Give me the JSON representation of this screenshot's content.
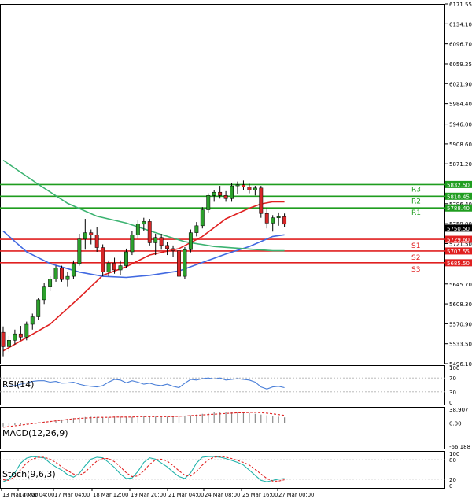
{
  "colors": {
    "background": "#ffffff",
    "frame": "#000000",
    "bull_candle": "#2ca02c",
    "bear_candle": "#d62728",
    "resistance": "#1f9d1f",
    "support": "#e02020",
    "ma_fast": "#e02020",
    "ma_mid": "#4169e1",
    "ma_slow": "#3cb371",
    "rsi": "#4a7fd8",
    "macd_hist": "#8a8a8a",
    "macd_signal": "#e02020",
    "stoch_main": "#20b2aa",
    "stoch_signal": "#e02020",
    "ref_line": "#b0b0b0"
  },
  "chart_data": {
    "type": "candlestick",
    "price_axis_ticks": [
      "6171.55",
      "6134.10",
      "6096.70",
      "6059.25",
      "6021.90",
      "5984.40",
      "5946.00",
      "5908.60",
      "5871.20",
      "5833.70",
      "5796.40",
      "5759.00",
      "5721.50",
      "5684.10",
      "5645.70",
      "5608.30",
      "5570.90",
      "5533.50",
      "5496.10"
    ],
    "ylim": [
      5496.1,
      6171.55
    ],
    "time_labels": [
      "13 Mar 20:00",
      "14 Mar 04:00",
      "17 Mar 04:00",
      "18 Mar 12:00",
      "19 Mar 20:00",
      "21 Mar 04:00",
      "24 Mar 08:00",
      "25 Mar 16:00",
      "27 Mar 00:00"
    ],
    "levels": [
      {
        "name": "R3",
        "value": 5832.5,
        "label": "5832.50",
        "kind": "resistance"
      },
      {
        "name": "R2",
        "value": 5810.45,
        "label": "5810.45",
        "kind": "resistance"
      },
      {
        "name": "R1",
        "value": 5788.4,
        "label": "5788.40",
        "kind": "resistance"
      },
      {
        "name": "S1",
        "value": 5729.6,
        "label": "5729.60",
        "kind": "support"
      },
      {
        "name": "S2",
        "value": 5707.55,
        "label": "5707.55",
        "kind": "support"
      },
      {
        "name": "S3",
        "value": 5685.5,
        "label": "5685.50",
        "kind": "support"
      }
    ],
    "current_price": {
      "value": 5750.5,
      "label": "5750.50"
    },
    "candles": [
      [
        5555,
        5566,
        5510,
        5528
      ],
      [
        5528,
        5548,
        5518,
        5540
      ],
      [
        5540,
        5560,
        5532,
        5552
      ],
      [
        5552,
        5567,
        5540,
        5546
      ],
      [
        5546,
        5575,
        5540,
        5570
      ],
      [
        5570,
        5590,
        5560,
        5584
      ],
      [
        5584,
        5620,
        5578,
        5616
      ],
      [
        5616,
        5648,
        5608,
        5640
      ],
      [
        5640,
        5660,
        5632,
        5655
      ],
      [
        5655,
        5680,
        5650,
        5676
      ],
      [
        5676,
        5680,
        5650,
        5654
      ],
      [
        5654,
        5668,
        5640,
        5660
      ],
      [
        5660,
        5690,
        5655,
        5684
      ],
      [
        5684,
        5740,
        5680,
        5730
      ],
      [
        5730,
        5768,
        5710,
        5742
      ],
      [
        5742,
        5748,
        5720,
        5738
      ],
      [
        5738,
        5752,
        5706,
        5714
      ],
      [
        5714,
        5720,
        5660,
        5668
      ],
      [
        5668,
        5690,
        5660,
        5685
      ],
      [
        5685,
        5695,
        5665,
        5672
      ],
      [
        5672,
        5690,
        5663,
        5680
      ],
      [
        5680,
        5712,
        5675,
        5706
      ],
      [
        5706,
        5745,
        5700,
        5738
      ],
      [
        5738,
        5765,
        5730,
        5758
      ],
      [
        5758,
        5770,
        5745,
        5763
      ],
      [
        5763,
        5768,
        5718,
        5723
      ],
      [
        5723,
        5740,
        5700,
        5733
      ],
      [
        5733,
        5740,
        5710,
        5718
      ],
      [
        5718,
        5725,
        5700,
        5712
      ],
      [
        5712,
        5718,
        5696,
        5708
      ],
      [
        5708,
        5712,
        5650,
        5660
      ],
      [
        5660,
        5715,
        5655,
        5710
      ],
      [
        5710,
        5748,
        5705,
        5742
      ],
      [
        5742,
        5762,
        5735,
        5755
      ],
      [
        5755,
        5790,
        5750,
        5785
      ],
      [
        5785,
        5816,
        5780,
        5812
      ],
      [
        5812,
        5822,
        5800,
        5818
      ],
      [
        5818,
        5830,
        5806,
        5812
      ],
      [
        5812,
        5820,
        5800,
        5806
      ],
      [
        5806,
        5836,
        5800,
        5830
      ],
      [
        5830,
        5838,
        5814,
        5832
      ],
      [
        5832,
        5840,
        5822,
        5828
      ],
      [
        5828,
        5834,
        5816,
        5822
      ],
      [
        5822,
        5830,
        5812,
        5826
      ],
      [
        5826,
        5830,
        5770,
        5778
      ],
      [
        5778,
        5788,
        5750,
        5760
      ],
      [
        5760,
        5775,
        5744,
        5770
      ],
      [
        5770,
        5780,
        5755,
        5772
      ],
      [
        5772,
        5778,
        5752,
        5758
      ]
    ],
    "moving_averages": [
      {
        "color_key": "ma_fast",
        "points": [
          [
            0,
            5520
          ],
          [
            8,
            5570
          ],
          [
            13,
            5620
          ],
          [
            17,
            5662
          ],
          [
            21,
            5678
          ],
          [
            25,
            5700
          ],
          [
            30,
            5712
          ],
          [
            34,
            5735
          ],
          [
            38,
            5768
          ],
          [
            42,
            5788
          ],
          [
            44,
            5796
          ],
          [
            46,
            5800
          ],
          [
            48,
            5800
          ]
        ]
      },
      {
        "color_key": "ma_mid",
        "points": [
          [
            0,
            5745
          ],
          [
            4,
            5706
          ],
          [
            8,
            5684
          ],
          [
            13,
            5668
          ],
          [
            17,
            5660
          ],
          [
            21,
            5658
          ],
          [
            25,
            5662
          ],
          [
            30,
            5670
          ],
          [
            34,
            5686
          ],
          [
            38,
            5702
          ],
          [
            42,
            5716
          ],
          [
            46,
            5735
          ],
          [
            48,
            5738
          ]
        ]
      },
      {
        "color_key": "ma_slow",
        "points": [
          [
            0,
            5878
          ],
          [
            6,
            5833
          ],
          [
            11,
            5797
          ],
          [
            16,
            5773
          ],
          [
            21,
            5760
          ],
          [
            26,
            5742
          ],
          [
            31,
            5725
          ],
          [
            36,
            5716
          ],
          [
            41,
            5712
          ],
          [
            46,
            5708
          ],
          [
            48,
            5708
          ]
        ]
      }
    ],
    "indicators": [
      {
        "name": "RSI(14)",
        "label": "RSI(14)",
        "ticks": [
          "100",
          "70",
          "30",
          "0"
        ],
        "ylim": [
          0,
          100
        ],
        "ref_levels": [
          70,
          30
        ],
        "series": [
          {
            "color_key": "rsi",
            "values": [
              45,
              47,
              48,
              52,
              56,
              60,
              62,
              62,
              58,
              60,
              55,
              56,
              58,
              52,
              48,
              46,
              44,
              48,
              58,
              66,
              64,
              56,
              62,
              58,
              52,
              55,
              50,
              48,
              52,
              46,
              42,
              55,
              66,
              64,
              68,
              70,
              67,
              70,
              64,
              66,
              68,
              66,
              64,
              58,
              44,
              38,
              44,
              46,
              42
            ]
          }
        ]
      },
      {
        "name": "MACD(12,26,9)",
        "label": "MACD(12,26,9)",
        "ticks": [
          "38.907",
          "0.00",
          "-66.188"
        ],
        "ylim": [
          -66.188,
          38.907
        ],
        "histogram": [
          -10,
          -8,
          -6,
          -4,
          -2,
          0,
          2,
          4,
          6,
          8,
          10,
          12,
          14,
          16,
          17,
          18,
          17,
          16,
          17,
          18,
          17,
          16,
          17,
          18,
          19,
          18,
          18,
          17,
          18,
          19,
          18,
          20,
          22,
          24,
          26,
          28,
          30,
          31,
          31,
          30,
          30,
          29,
          28,
          26,
          24,
          22,
          20,
          18,
          16
        ],
        "series": [
          {
            "color_key": "macd_signal",
            "values": [
              -12,
              -10,
              -8,
              -6,
              -4,
              -2,
              0,
              2,
              4,
              6,
              8,
              10,
              12,
              13,
              14,
              15,
              16,
              16,
              16,
              17,
              17,
              17,
              17,
              18,
              18,
              18,
              18,
              18,
              18,
              18,
              19,
              20,
              21,
              22,
              23,
              24,
              25,
              26,
              27,
              28,
              29,
              29,
              30,
              30,
              29,
              28,
              26,
              24,
              22
            ]
          }
        ]
      },
      {
        "name": "Stoch(9,6,3)",
        "label": "Stoch(9,6,3)",
        "ticks": [
          "100",
          "80",
          "20",
          "0"
        ],
        "ylim": [
          0,
          100
        ],
        "ref_levels": [
          80,
          20
        ],
        "series": [
          {
            "color_key": "stoch_main",
            "values": [
              12,
              20,
              40,
              70,
              85,
              90,
              88,
              86,
              70,
              58,
              48,
              34,
              26,
              38,
              62,
              82,
              88,
              86,
              72,
              56,
              36,
              22,
              24,
              44,
              72,
              86,
              82,
              70,
              58,
              42,
              28,
              22,
              40,
              70,
              88,
              90,
              90,
              88,
              84,
              78,
              72,
              64,
              48,
              32,
              16,
              12,
              16,
              20,
              22
            ]
          },
          {
            "color_key": "stoch_signal",
            "values": [
              18,
              16,
              28,
              50,
              70,
              82,
              88,
              88,
              82,
              72,
              58,
              46,
              36,
              32,
              42,
              60,
              76,
              84,
              84,
              74,
              58,
              40,
              28,
              30,
              46,
              66,
              80,
              82,
              76,
              62,
              46,
              32,
              30,
              44,
              64,
              80,
              88,
              90,
              88,
              84,
              78,
              72,
              64,
              50,
              36,
              22,
              14,
              14,
              18
            ]
          }
        ]
      }
    ]
  }
}
